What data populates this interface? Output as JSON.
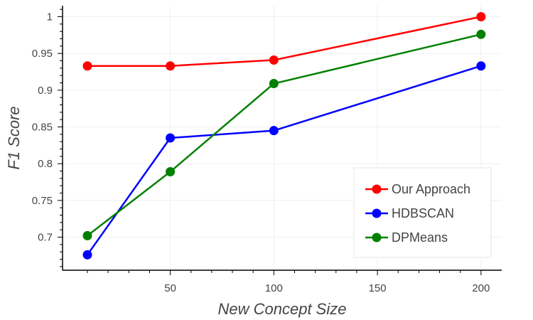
{
  "chart_data": {
    "type": "line",
    "title": "",
    "xlabel": "New Concept Size",
    "ylabel": "F1 Score",
    "x": [
      10,
      50,
      100,
      200
    ],
    "xlim": [
      -2,
      210
    ],
    "ylim": [
      0.655,
      1.015
    ],
    "x_major_ticks": [
      50,
      100,
      150,
      200
    ],
    "x_minor_ticks": [
      10,
      20,
      30,
      40,
      60,
      70,
      80,
      90,
      110,
      120,
      130,
      140,
      160,
      170,
      180,
      190
    ],
    "y_major_ticks": [
      0.7,
      0.75,
      0.8,
      0.85,
      0.9,
      0.95,
      1
    ],
    "y_minor_ticks": [
      0.66,
      0.67,
      0.68,
      0.69,
      0.71,
      0.72,
      0.73,
      0.74,
      0.76,
      0.77,
      0.78,
      0.79,
      0.81,
      0.82,
      0.83,
      0.84,
      0.86,
      0.87,
      0.88,
      0.89,
      0.91,
      0.92,
      0.93,
      0.94,
      0.96,
      0.97,
      0.98,
      0.99,
      1.01
    ],
    "x_tick_labels": [
      "50",
      "100",
      "150",
      "200"
    ],
    "y_tick_labels": [
      "0.7",
      "0.75",
      "0.8",
      "0.85",
      "0.9",
      "0.95",
      "1"
    ],
    "grid": true,
    "legend_position": "bottom-right",
    "series": [
      {
        "name": "Our Approach",
        "color": "#ff0000",
        "values": [
          0.933,
          0.933,
          0.941,
          1.0
        ]
      },
      {
        "name": "HDBSCAN",
        "color": "#0000ff",
        "values": [
          0.676,
          0.835,
          0.845,
          0.933
        ]
      },
      {
        "name": "DPMeans",
        "color": "#008000",
        "values": [
          0.702,
          0.789,
          0.909,
          0.976
        ]
      }
    ]
  }
}
